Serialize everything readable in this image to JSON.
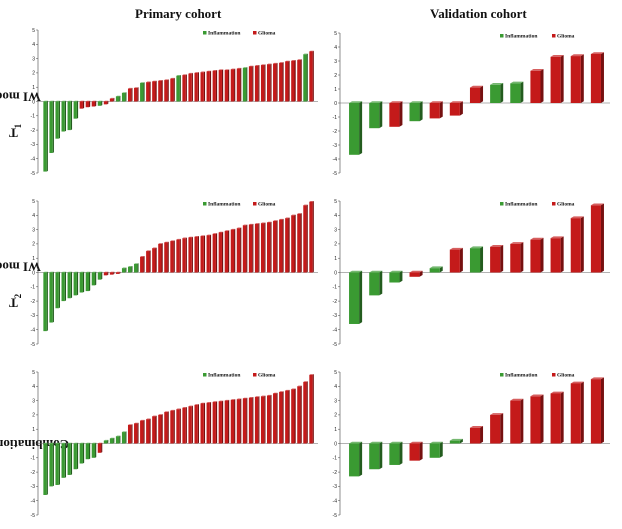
{
  "column_titles": [
    "Primary cohort",
    "Validation cohort"
  ],
  "row_labels": [
    {
      "main": "T",
      "sub": "1",
      "rest": "WI model"
    },
    {
      "main": "T",
      "sub": "2",
      "rest": "WI model"
    },
    {
      "main": "",
      "sub": "",
      "rest": "Combination model"
    }
  ],
  "legend": {
    "inflammation": "Inflammation",
    "glioma": "Glioma"
  },
  "colors": {
    "inflammation": "#3a9a32",
    "glioma": "#c41a1a"
  },
  "chart_data": [
    {
      "type": "bar",
      "row": 0,
      "col": 0,
      "ylim": [
        -5,
        5
      ],
      "yticks": [
        "-5",
        "-4",
        "-3",
        "-2",
        "-1",
        "0",
        "1",
        "2",
        "3",
        "4",
        "5"
      ],
      "values": [
        -4.9,
        -3.6,
        -2.6,
        -2.1,
        -2.0,
        -1.2,
        -0.5,
        -0.4,
        -0.35,
        -0.3,
        -0.2,
        0.2,
        0.35,
        0.6,
        0.9,
        0.95,
        1.3,
        1.35,
        1.4,
        1.45,
        1.5,
        1.6,
        1.8,
        1.85,
        1.95,
        2.0,
        2.05,
        2.1,
        2.15,
        2.2,
        2.2,
        2.25,
        2.3,
        2.35,
        2.45,
        2.5,
        2.55,
        2.6,
        2.65,
        2.7,
        2.8,
        2.85,
        2.9,
        3.3,
        3.5
      ],
      "classes": [
        "I",
        "I",
        "I",
        "I",
        "I",
        "I",
        "G",
        "G",
        "G",
        "I",
        "G",
        "G",
        "I",
        "I",
        "G",
        "G",
        "I",
        "G",
        "G",
        "G",
        "G",
        "G",
        "I",
        "G",
        "G",
        "G",
        "G",
        "G",
        "G",
        "G",
        "G",
        "G",
        "G",
        "I",
        "G",
        "G",
        "G",
        "G",
        "G",
        "G",
        "G",
        "G",
        "G",
        "I",
        "G"
      ]
    },
    {
      "type": "bar",
      "row": 0,
      "col": 1,
      "ylim": [
        -5,
        5
      ],
      "yticks": [
        "-5",
        "-4",
        "-3",
        "-2",
        "-1",
        "0",
        "1",
        "2",
        "3",
        "4",
        "5"
      ],
      "values": [
        -3.7,
        -1.8,
        -1.7,
        -1.3,
        -1.1,
        -0.9,
        1.1,
        1.3,
        1.4,
        2.3,
        3.3,
        3.35,
        3.5
      ],
      "classes": [
        "I",
        "I",
        "G",
        "I",
        "G",
        "G",
        "G",
        "I",
        "I",
        "G",
        "G",
        "G",
        "G"
      ]
    },
    {
      "type": "bar",
      "row": 1,
      "col": 0,
      "ylim": [
        -5,
        5
      ],
      "yticks": [
        "-5",
        "-4",
        "-3",
        "-2",
        "-1",
        "0",
        "1",
        "2",
        "3",
        "4",
        "5"
      ],
      "values": [
        -4.1,
        -3.5,
        -2.5,
        -2.0,
        -1.8,
        -1.6,
        -1.4,
        -1.3,
        -0.9,
        -0.5,
        -0.2,
        -0.15,
        -0.1,
        0.3,
        0.4,
        0.6,
        1.1,
        1.5,
        1.7,
        2.0,
        2.1,
        2.2,
        2.3,
        2.4,
        2.45,
        2.5,
        2.55,
        2.6,
        2.7,
        2.8,
        2.9,
        3.0,
        3.1,
        3.3,
        3.35,
        3.4,
        3.45,
        3.5,
        3.6,
        3.7,
        3.8,
        4.0,
        4.1,
        4.7,
        4.95
      ],
      "classes": [
        "I",
        "I",
        "I",
        "I",
        "I",
        "I",
        "I",
        "I",
        "I",
        "I",
        "G",
        "G",
        "G",
        "I",
        "I",
        "I",
        "G",
        "G",
        "G",
        "G",
        "G",
        "G",
        "G",
        "G",
        "G",
        "G",
        "G",
        "G",
        "G",
        "G",
        "G",
        "G",
        "G",
        "G",
        "G",
        "G",
        "G",
        "G",
        "G",
        "G",
        "G",
        "G",
        "G",
        "G",
        "G"
      ]
    },
    {
      "type": "bar",
      "row": 1,
      "col": 1,
      "ylim": [
        -5,
        5
      ],
      "yticks": [
        "-5",
        "-4",
        "-3",
        "-2",
        "-1",
        "0",
        "1",
        "2",
        "3",
        "4",
        "5"
      ],
      "values": [
        -3.6,
        -1.6,
        -0.7,
        -0.3,
        0.3,
        1.6,
        1.7,
        1.8,
        2.0,
        2.3,
        2.4,
        3.8,
        4.7
      ],
      "classes": [
        "I",
        "I",
        "I",
        "G",
        "I",
        "G",
        "I",
        "G",
        "G",
        "G",
        "G",
        "G",
        "G"
      ]
    },
    {
      "type": "bar",
      "row": 2,
      "col": 0,
      "ylim": [
        -5,
        5
      ],
      "yticks": [
        "-5",
        "-4",
        "-3",
        "-2",
        "-1",
        "0",
        "1",
        "2",
        "3",
        "4",
        "5"
      ],
      "values": [
        -3.6,
        -3.0,
        -2.9,
        -2.4,
        -2.2,
        -1.8,
        -1.4,
        -1.1,
        -1.0,
        -0.65,
        0.2,
        0.35,
        0.5,
        0.8,
        1.3,
        1.4,
        1.6,
        1.7,
        1.9,
        2.0,
        2.2,
        2.3,
        2.4,
        2.5,
        2.6,
        2.7,
        2.8,
        2.85,
        2.9,
        2.95,
        3.0,
        3.05,
        3.1,
        3.15,
        3.2,
        3.25,
        3.3,
        3.35,
        3.5,
        3.6,
        3.7,
        3.8,
        4.0,
        4.3,
        4.8
      ],
      "classes": [
        "I",
        "I",
        "I",
        "I",
        "I",
        "I",
        "I",
        "I",
        "I",
        "G",
        "I",
        "I",
        "I",
        "I",
        "G",
        "G",
        "G",
        "G",
        "G",
        "G",
        "G",
        "G",
        "G",
        "G",
        "G",
        "G",
        "G",
        "G",
        "G",
        "G",
        "G",
        "G",
        "G",
        "G",
        "G",
        "G",
        "G",
        "G",
        "G",
        "G",
        "G",
        "G",
        "G",
        "G",
        "G"
      ]
    },
    {
      "type": "bar",
      "row": 2,
      "col": 1,
      "ylim": [
        -5,
        5
      ],
      "yticks": [
        "-5",
        "-4",
        "-3",
        "-2",
        "-1",
        "0",
        "1",
        "2",
        "3",
        "4",
        "5"
      ],
      "values": [
        -2.3,
        -1.8,
        -1.5,
        -1.2,
        -1.0,
        0.2,
        1.1,
        2.0,
        3.0,
        3.3,
        3.5,
        4.2,
        4.5
      ],
      "classes": [
        "I",
        "I",
        "I",
        "G",
        "I",
        "I",
        "G",
        "G",
        "G",
        "G",
        "G",
        "G",
        "G"
      ]
    }
  ]
}
